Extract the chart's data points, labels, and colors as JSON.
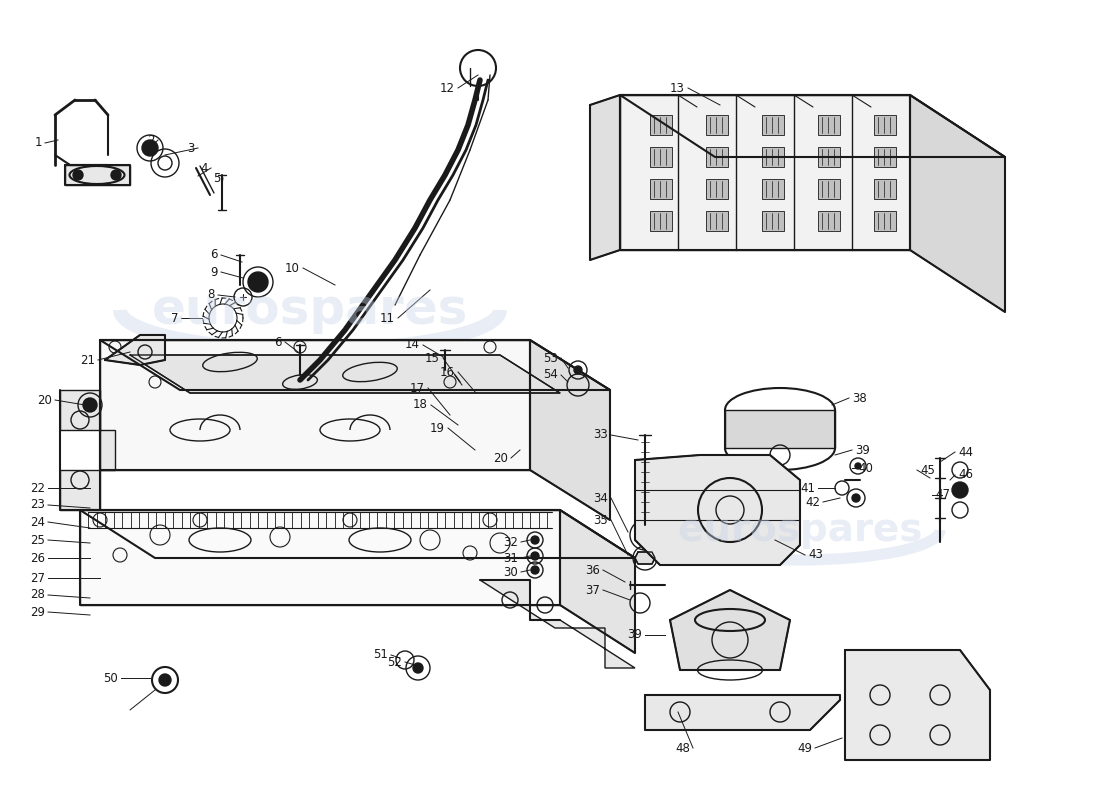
{
  "bg": "#ffffff",
  "fg": "#1a1a1a",
  "wm_color": "#c8d4e8",
  "wm_alpha": 0.4,
  "fig_w": 11.0,
  "fig_h": 8.0,
  "dpi": 100
}
